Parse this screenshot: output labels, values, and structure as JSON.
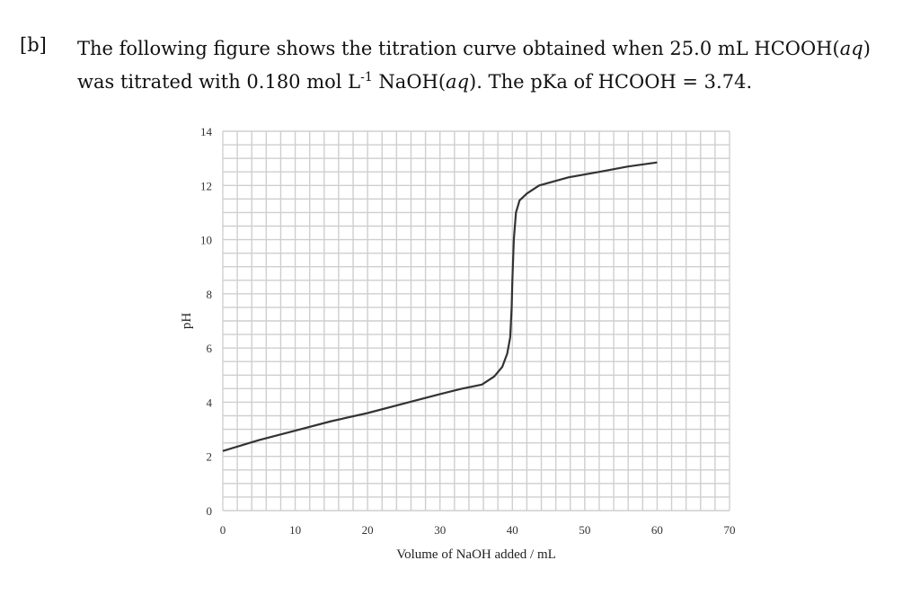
{
  "question": {
    "label": "[b]",
    "line1_pre": "The following figure shows the titration curve obtained when 25.0 mL HCOOH(",
    "line1_italic": "aq",
    "line1_post": ")",
    "line2_pre": "was titrated with 0.180 mol L",
    "line2_sup": "-1",
    "line2_mid": " NaOH(",
    "line2_italic": "aq",
    "line2_post": ").  The pKa of HCOOH = 3.74."
  },
  "chart_data": {
    "type": "line",
    "title": "",
    "xlabel": "Volume of NaOH added / mL",
    "ylabel": "pH",
    "xlim": [
      0,
      70
    ],
    "ylim": [
      0,
      14
    ],
    "xticks": [
      0,
      10,
      20,
      30,
      40,
      50,
      60,
      70
    ],
    "yticks": [
      0,
      2,
      4,
      6,
      8,
      10,
      12,
      14
    ],
    "grid": true,
    "grid_minor_x": 2,
    "grid_minor_y": 0.5,
    "line_color": "#333333",
    "series": [
      {
        "x": [
          0,
          5,
          10,
          15,
          20,
          25,
          30,
          33,
          35.8,
          37.5,
          38.6,
          39.3,
          39.7,
          39.9,
          40.0,
          40.2,
          40.5,
          41.0,
          42.0,
          43.7,
          47.8,
          52,
          56,
          60
        ],
        "y": [
          2.2,
          2.6,
          2.95,
          3.3,
          3.6,
          3.95,
          4.3,
          4.5,
          4.65,
          4.95,
          5.3,
          5.8,
          6.4,
          7.5,
          8.5,
          10.0,
          11.0,
          11.45,
          11.7,
          12.0,
          12.3,
          12.5,
          12.7,
          12.85
        ]
      }
    ]
  }
}
